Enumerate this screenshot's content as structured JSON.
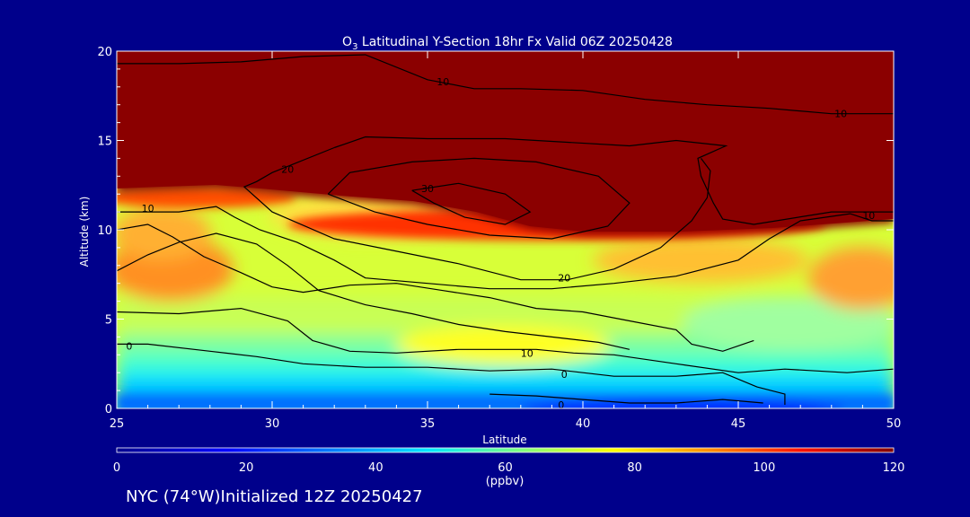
{
  "chart_data": {
    "type": "heatmap",
    "title": "O3 Latitudinal Y-Section 18hr  Fx Valid 06Z 20250428",
    "title_parts": {
      "pre": "O",
      "sub": "3",
      "post": " Latitudinal Y-Section 18hr  Fx Valid 06Z 20250428"
    },
    "xlabel": "Latitude",
    "ylabel": "Altitude (km)",
    "xlim": [
      25,
      50
    ],
    "ylim": [
      0,
      20
    ],
    "xticks": [
      "25",
      "30",
      "35",
      "40",
      "45",
      "50"
    ],
    "yticks": [
      "0",
      "5",
      "10",
      "15",
      "20"
    ],
    "colorbar": {
      "min": 0,
      "max": 120,
      "ticks": [
        "0",
        "20",
        "40",
        "60",
        "80",
        "100",
        "120"
      ],
      "unit_label": "(ppbv)"
    },
    "contour_labels": [
      {
        "text": "10",
        "lat": 35.5,
        "alt": 18.3
      },
      {
        "text": "10",
        "lat": 48.3,
        "alt": 16.5
      },
      {
        "text": "20",
        "lat": 30.5,
        "alt": 13.4
      },
      {
        "text": "30",
        "lat": 35.0,
        "alt": 12.3
      },
      {
        "text": "10",
        "lat": 26.0,
        "alt": 11.2
      },
      {
        "text": "10",
        "lat": 49.2,
        "alt": 10.8
      },
      {
        "text": "20",
        "lat": 39.4,
        "alt": 7.3
      },
      {
        "text": "10",
        "lat": 38.2,
        "alt": 3.1
      },
      {
        "text": "0",
        "lat": 25.4,
        "alt": 3.5
      },
      {
        "text": "0",
        "lat": 39.4,
        "alt": 1.9
      },
      {
        "text": "0",
        "lat": 39.3,
        "alt": 0.2
      }
    ],
    "contours": [
      {
        "level": 10,
        "pts": [
          [
            25,
            19.3
          ],
          [
            27,
            19.3
          ],
          [
            29,
            19.4
          ],
          [
            31,
            19.7
          ],
          [
            33,
            19.8
          ],
          [
            35,
            18.4
          ],
          [
            36.5,
            17.9
          ],
          [
            38,
            17.9
          ],
          [
            40,
            17.8
          ],
          [
            42,
            17.3
          ],
          [
            44,
            17.0
          ],
          [
            46,
            16.8
          ],
          [
            48,
            16.5
          ],
          [
            50,
            16.5
          ]
        ]
      },
      {
        "level": 20,
        "pts": [
          [
            32,
            14.6
          ],
          [
            33,
            15.2
          ],
          [
            35,
            15.1
          ],
          [
            37.5,
            15.1
          ],
          [
            41.5,
            14.7
          ],
          [
            43,
            15.0
          ],
          [
            44.6,
            14.7
          ],
          [
            43.7,
            14.0
          ],
          [
            43.8,
            13.0
          ],
          [
            44.2,
            11.5
          ],
          [
            44.5,
            10.6
          ],
          [
            45.5,
            10.3
          ],
          [
            48,
            11.0
          ],
          [
            50,
            11.0
          ]
        ]
      },
      {
        "level": 20,
        "pts": [
          [
            32,
            14.6
          ],
          [
            30,
            13.2
          ],
          [
            29.5,
            12.7
          ],
          [
            29.1,
            12.4
          ],
          [
            30,
            11.0
          ],
          [
            32,
            9.5
          ],
          [
            34,
            8.8
          ],
          [
            36,
            8.1
          ],
          [
            38,
            7.2
          ],
          [
            39.5,
            7.2
          ],
          [
            41,
            7.8
          ],
          [
            42.5,
            9.0
          ],
          [
            43.5,
            10.5
          ],
          [
            44.0,
            11.8
          ],
          [
            44.1,
            13.3
          ],
          [
            43.8,
            14.0
          ]
        ]
      },
      {
        "level": 30,
        "pts": [
          [
            34.5,
            12.2
          ],
          [
            36,
            12.6
          ],
          [
            37.5,
            12.0
          ],
          [
            38.3,
            11.0
          ],
          [
            37.5,
            10.3
          ],
          [
            36.2,
            10.7
          ],
          [
            35.2,
            11.5
          ],
          [
            34.5,
            12.2
          ]
        ]
      },
      {
        "level": 30,
        "pts": [
          [
            31.8,
            12.0
          ],
          [
            32.5,
            13.2
          ],
          [
            34.5,
            13.8
          ],
          [
            36.5,
            14.0
          ],
          [
            38.5,
            13.8
          ],
          [
            40.5,
            13.0
          ],
          [
            41.5,
            11.5
          ],
          [
            40.8,
            10.2
          ],
          [
            39,
            9.5
          ],
          [
            37,
            9.7
          ],
          [
            35,
            10.3
          ],
          [
            33.3,
            11.0
          ],
          [
            31.8,
            12.0
          ]
        ]
      },
      {
        "level": 10,
        "pts": [
          [
            25,
            11.0
          ],
          [
            27,
            11.0
          ],
          [
            28.2,
            11.3
          ],
          [
            28.8,
            10.7
          ],
          [
            29.6,
            10.0
          ],
          [
            30.8,
            9.3
          ],
          [
            32,
            8.3
          ],
          [
            33,
            7.3
          ],
          [
            35,
            7.0
          ],
          [
            37,
            6.7
          ],
          [
            39,
            6.7
          ],
          [
            41,
            7.0
          ],
          [
            43,
            7.4
          ],
          [
            45,
            8.3
          ],
          [
            46,
            9.5
          ],
          [
            47,
            10.5
          ],
          [
            48.6,
            10.9
          ],
          [
            49.3,
            10.5
          ],
          [
            50,
            10.5
          ]
        ]
      },
      {
        "level": 10,
        "pts": [
          [
            25,
            10.0
          ],
          [
            26,
            10.3
          ],
          [
            26.8,
            9.6
          ],
          [
            27.8,
            8.5
          ],
          [
            29,
            7.6
          ],
          [
            30,
            6.8
          ],
          [
            31,
            6.5
          ],
          [
            32.5,
            6.9
          ],
          [
            34,
            7.0
          ],
          [
            35.5,
            6.6
          ],
          [
            37,
            6.2
          ],
          [
            38.5,
            5.6
          ],
          [
            40,
            5.4
          ],
          [
            41.5,
            4.9
          ],
          [
            43,
            4.4
          ],
          [
            43.5,
            3.6
          ],
          [
            44.5,
            3.2
          ],
          [
            45.5,
            3.8
          ]
        ]
      },
      {
        "level": 10,
        "pts": [
          [
            25,
            7.7
          ],
          [
            26,
            8.6
          ],
          [
            27,
            9.3
          ],
          [
            28.2,
            9.8
          ],
          [
            29.5,
            9.2
          ],
          [
            30.5,
            8.0
          ],
          [
            31.5,
            6.6
          ],
          [
            33,
            5.8
          ],
          [
            34.5,
            5.3
          ],
          [
            36,
            4.7
          ],
          [
            37.5,
            4.3
          ],
          [
            39,
            4.0
          ],
          [
            40.5,
            3.7
          ],
          [
            41.5,
            3.3
          ]
        ]
      },
      {
        "level": 10,
        "pts": [
          [
            25,
            5.4
          ],
          [
            27,
            5.3
          ],
          [
            29,
            5.6
          ],
          [
            30.5,
            4.9
          ],
          [
            31.3,
            3.8
          ],
          [
            32.5,
            3.2
          ],
          [
            34,
            3.1
          ],
          [
            36,
            3.3
          ],
          [
            37.5,
            3.3
          ],
          [
            38.5,
            3.3
          ],
          [
            39.7,
            3.1
          ],
          [
            41,
            3.0
          ],
          [
            43,
            2.5
          ],
          [
            45,
            2.0
          ],
          [
            46.5,
            2.2
          ],
          [
            48.5,
            2.0
          ],
          [
            50,
            2.2
          ]
        ]
      },
      {
        "level": 0,
        "pts": [
          [
            25,
            3.6
          ],
          [
            26,
            3.6
          ],
          [
            28,
            3.2
          ],
          [
            29.5,
            2.9
          ],
          [
            31,
            2.5
          ],
          [
            33,
            2.3
          ],
          [
            35,
            2.3
          ],
          [
            37,
            2.1
          ],
          [
            39,
            2.2
          ],
          [
            41,
            1.8
          ],
          [
            43,
            1.8
          ],
          [
            44.5,
            2.0
          ],
          [
            45.6,
            1.2
          ],
          [
            46.5,
            0.8
          ],
          [
            46.5,
            0.2
          ]
        ]
      },
      {
        "level": 0,
        "pts": [
          [
            37,
            0.8
          ],
          [
            38.5,
            0.7
          ],
          [
            40,
            0.5
          ],
          [
            41.5,
            0.3
          ],
          [
            43,
            0.3
          ],
          [
            44.5,
            0.5
          ],
          [
            45.8,
            0.3
          ]
        ]
      }
    ]
  },
  "footer": "NYC (74°W)Initialized 12Z 20250427"
}
